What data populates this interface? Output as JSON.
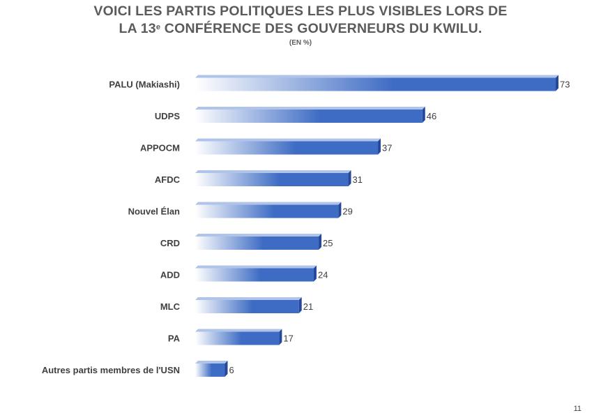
{
  "header": {
    "title_line1": "VOICI LES PARTIS POLITIQUES LES PLUS VISIBLES LORS DE",
    "title_line2_pre": "LA 13",
    "title_line2_sup": "e",
    "title_line2_post": " CONFÉRENCE DES GOUVERNEURS DU KWILU.",
    "subtitle": "(EN %)"
  },
  "page_number": "11",
  "colors": {
    "bar_main": "#3e6cc4",
    "bar_light": "#ffffff",
    "bar_top": "#6f93d8",
    "bar_side": "#26489a"
  },
  "chart_data": {
    "type": "bar",
    "orientation": "horizontal",
    "title": "VOICI LES PARTIS POLITIQUES LES PLUS VISIBLES LORS DE LA 13e CONFÉRENCE DES GOUVERNEURS DU KWILU.",
    "subtitle": "(EN %)",
    "categories": [
      "PALU (Makiashi)",
      "UDPS",
      "APPOCM",
      "AFDC",
      "Nouvel Élan",
      "CRD",
      "ADD",
      "MLC",
      "PA",
      "Autres partis membres de l'USN"
    ],
    "values": [
      73,
      46,
      37,
      31,
      29,
      25,
      24,
      21,
      17,
      6
    ],
    "xlim": [
      0,
      73
    ],
    "grid": false,
    "legend": "none",
    "data_labels": true
  }
}
